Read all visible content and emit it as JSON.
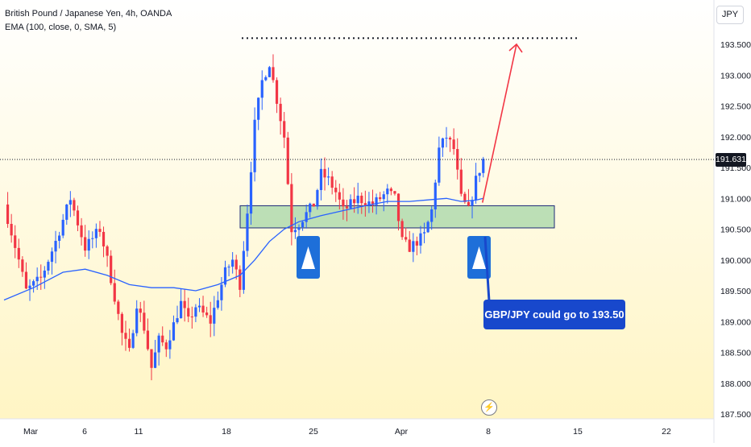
{
  "legend": {
    "symbol": "British Pound / Japanese Yen, 4h, OANDA",
    "indicator": "EMA (100, close, 0, SMA, 5)"
  },
  "currency_label": "JPY",
  "last_price_label": "191.631",
  "callout_text": "GBP/JPY could go to 193.50",
  "event_icon": "lightning-icon",
  "colors": {
    "up": "#2962ff",
    "down": "#f23645",
    "ema": "#2962ff",
    "zone_fill": "#a5d6a7",
    "zone_border": "#1e2a78",
    "projection": "#f23645",
    "marker": "#1e6fd9",
    "background_top": "#ffffff",
    "background_bottom": "#fff5c4"
  },
  "chart_data": {
    "type": "candlestick",
    "ylim": [
      187.45,
      193.82
    ],
    "y_ticks": [
      "187.500",
      "188.000",
      "188.500",
      "189.000",
      "189.500",
      "190.000",
      "190.500",
      "191.000",
      "191.500",
      "192.000",
      "192.500",
      "193.000",
      "193.500"
    ],
    "x_ticks": [
      "Mar",
      "6",
      "11",
      "18",
      "25",
      "Apr",
      "8",
      "15",
      "22"
    ],
    "last_price": 191.631,
    "target_price": 193.6,
    "support_zone": [
      190.52,
      190.88
    ],
    "projection": {
      "from": 190.93,
      "to": 193.5
    },
    "markers": [
      "up-arrow",
      "up-arrow"
    ],
    "close_path": [
      [
        0,
        190.9
      ],
      [
        2,
        190.0
      ],
      [
        3,
        189.5
      ],
      [
        5,
        189.7
      ],
      [
        7,
        190.3
      ],
      [
        9,
        191.0
      ],
      [
        11,
        190.2
      ],
      [
        13,
        190.5
      ],
      [
        14,
        190.0
      ],
      [
        16,
        188.8
      ],
      [
        17,
        188.5
      ],
      [
        18,
        189.3
      ],
      [
        19,
        188.9
      ],
      [
        20,
        188.25
      ],
      [
        21,
        188.7
      ],
      [
        22,
        188.6
      ],
      [
        24,
        189.3
      ],
      [
        25,
        189.0
      ],
      [
        26,
        189.25
      ],
      [
        28,
        189.0
      ],
      [
        30,
        189.8
      ],
      [
        31,
        190.0
      ],
      [
        32,
        189.6
      ],
      [
        33,
        190.8
      ],
      [
        34,
        192.2
      ],
      [
        35,
        192.9
      ],
      [
        36,
        193.2
      ],
      [
        37,
        192.6
      ],
      [
        38,
        192.0
      ],
      [
        39,
        190.5
      ],
      [
        40,
        190.6
      ],
      [
        42,
        190.9
      ],
      [
        43,
        191.4
      ],
      [
        44,
        191.3
      ],
      [
        45,
        191.1
      ],
      [
        46,
        190.8
      ],
      [
        48,
        191.0
      ],
      [
        50,
        190.9
      ],
      [
        52,
        191.1
      ],
      [
        53,
        191.0
      ],
      [
        54,
        190.3
      ],
      [
        55,
        190.2
      ],
      [
        57,
        190.4
      ],
      [
        58,
        190.8
      ],
      [
        59,
        191.8
      ],
      [
        60,
        192.0
      ],
      [
        61,
        191.8
      ],
      [
        62,
        191.0
      ],
      [
        63,
        190.8
      ],
      [
        64,
        191.3
      ],
      [
        65,
        191.63
      ]
    ],
    "ema_path": [
      [
        0,
        189.35
      ],
      [
        4,
        189.55
      ],
      [
        8,
        189.8
      ],
      [
        11,
        189.85
      ],
      [
        14,
        189.75
      ],
      [
        17,
        189.6
      ],
      [
        20,
        189.55
      ],
      [
        23,
        189.55
      ],
      [
        26,
        189.5
      ],
      [
        29,
        189.6
      ],
      [
        32,
        189.75
      ],
      [
        34,
        190.0
      ],
      [
        36,
        190.3
      ],
      [
        38,
        190.5
      ],
      [
        40,
        190.62
      ],
      [
        43,
        190.72
      ],
      [
        46,
        190.8
      ],
      [
        49,
        190.88
      ],
      [
        52,
        190.95
      ],
      [
        55,
        190.95
      ],
      [
        58,
        190.98
      ],
      [
        60,
        191.0
      ],
      [
        62,
        190.95
      ],
      [
        64,
        190.97
      ],
      [
        65,
        191.0
      ]
    ]
  }
}
